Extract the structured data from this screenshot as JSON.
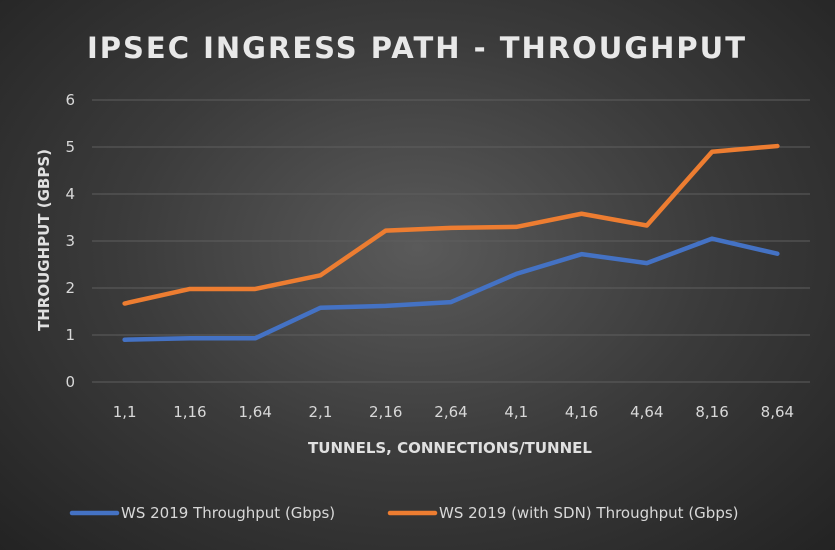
{
  "chart_data": {
    "type": "line",
    "title": "IPSEC INGRESS PATH - THROUGHPUT",
    "xlabel": "TUNNELS, CONNECTIONS/TUNNEL",
    "ylabel": "THROUGHPUT (GBPS)",
    "ylim": [
      0,
      6
    ],
    "yticks": [
      "0",
      "1",
      "2",
      "3",
      "4",
      "5",
      "6"
    ],
    "grid": true,
    "legend_position": "bottom",
    "categories": [
      "1,1",
      "1,16",
      "1,64",
      "2,1",
      "2,16",
      "2,64",
      "4,1",
      "4,16",
      "4,64",
      "8,16",
      "8,64"
    ],
    "series": [
      {
        "name": "WS 2019 Throughput (Gbps)",
        "color": "#4472c4",
        "values": [
          0.9,
          0.93,
          0.93,
          1.58,
          1.62,
          1.7,
          2.3,
          2.72,
          2.53,
          3.05,
          2.73
        ]
      },
      {
        "name": "WS 2019 (with SDN) Throughput (Gbps)",
        "color": "#ed7d31",
        "values": [
          1.67,
          1.98,
          1.98,
          2.27,
          3.22,
          3.28,
          3.3,
          3.58,
          3.33,
          4.9,
          5.02
        ]
      }
    ]
  }
}
